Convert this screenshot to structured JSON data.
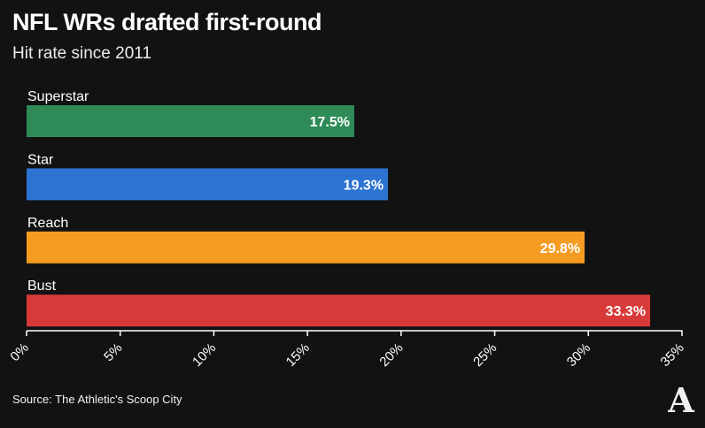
{
  "header": {
    "title": "NFL WRs drafted first-round",
    "subtitle": "Hit rate since 2011"
  },
  "footer": {
    "source": "Source: The Athletic's Scoop City",
    "logo_letter": "A"
  },
  "chart_data": {
    "type": "bar",
    "orientation": "horizontal",
    "title": "NFL WRs drafted first-round",
    "subtitle": "Hit rate since 2011",
    "categories": [
      "Superstar",
      "Star",
      "Reach",
      "Bust"
    ],
    "values": [
      17.5,
      19.3,
      29.8,
      33.3
    ],
    "value_labels": [
      "17.5%",
      "19.3%",
      "29.8%",
      "33.3%"
    ],
    "colors": [
      "#2e8b57",
      "#2d73d2",
      "#f59b22",
      "#d83a3a"
    ],
    "xlim": [
      0,
      35
    ],
    "xticks": [
      0,
      5,
      10,
      15,
      20,
      25,
      30,
      35
    ],
    "xtick_labels": [
      "0%",
      "5%",
      "10%",
      "15%",
      "20%",
      "25%",
      "30%",
      "35%"
    ],
    "xlabel": "",
    "ylabel": "",
    "grid": false,
    "legend": "none"
  }
}
